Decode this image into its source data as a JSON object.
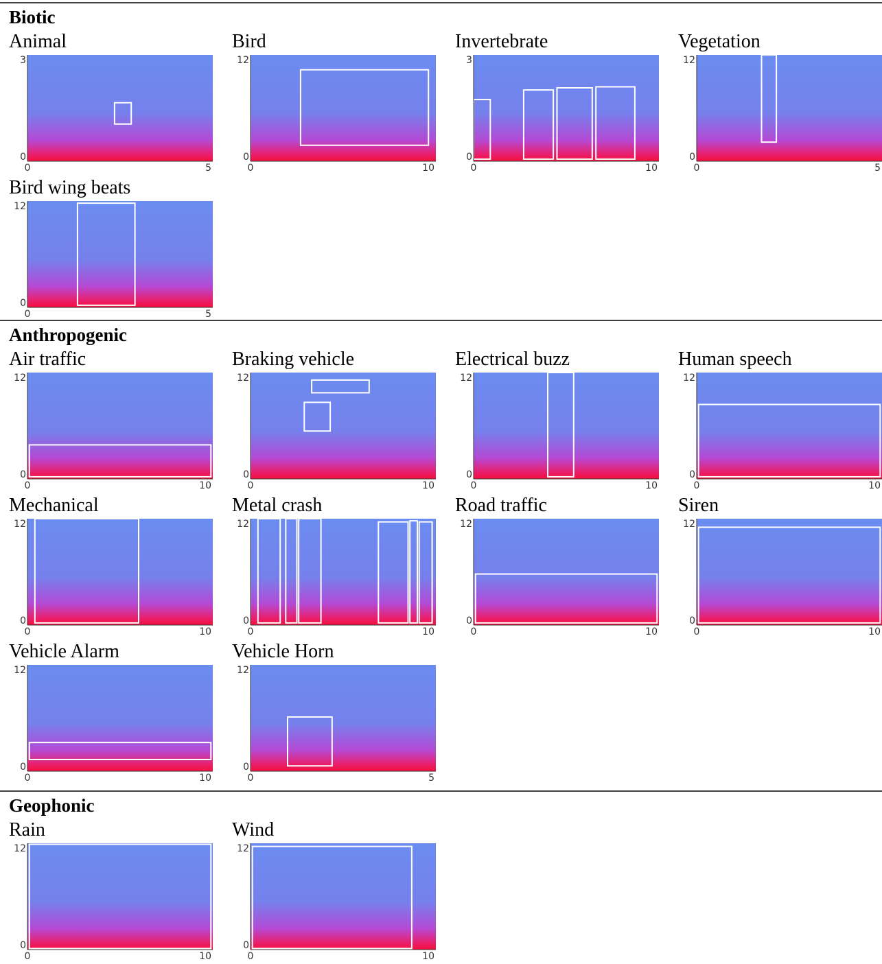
{
  "sections": [
    {
      "title": "Biotic",
      "panels": [
        {
          "label": "Animal",
          "y_max": 3,
          "y_min": 0,
          "x_min": 0,
          "x_max": 5
        },
        {
          "label": "Bird",
          "y_max": 12,
          "y_min": 0,
          "x_min": 0,
          "x_max": 10
        },
        {
          "label": "Invertebrate",
          "y_max": 3,
          "y_min": 0,
          "x_min": 0,
          "x_max": 10
        },
        {
          "label": "Vegetation",
          "y_max": 12,
          "y_min": 0,
          "x_min": 0,
          "x_max": 5
        },
        {
          "label": "Bird wing beats",
          "y_max": 12,
          "y_min": 0,
          "x_min": 0,
          "x_max": 5
        }
      ]
    },
    {
      "title": "Anthropogenic",
      "panels": [
        {
          "label": "Air traffic",
          "y_max": 12,
          "y_min": 0,
          "x_min": 0,
          "x_max": 10
        },
        {
          "label": "Braking vehicle",
          "y_max": 12,
          "y_min": 0,
          "x_min": 0,
          "x_max": 10
        },
        {
          "label": "Electrical buzz",
          "y_max": 12,
          "y_min": 0,
          "x_min": 0,
          "x_max": 10
        },
        {
          "label": "Human speech",
          "y_max": 12,
          "y_min": 0,
          "x_min": 0,
          "x_max": 10
        },
        {
          "label": "Mechanical",
          "y_max": 12,
          "y_min": 0,
          "x_min": 0,
          "x_max": 10
        },
        {
          "label": "Metal crash",
          "y_max": 12,
          "y_min": 0,
          "x_min": 0,
          "x_max": 10
        },
        {
          "label": "Road traffic",
          "y_max": 12,
          "y_min": 0,
          "x_min": 0,
          "x_max": 10
        },
        {
          "label": "Siren",
          "y_max": 12,
          "y_min": 0,
          "x_min": 0,
          "x_max": 10
        },
        {
          "label": "Vehicle Alarm",
          "y_max": 12,
          "y_min": 0,
          "x_min": 0,
          "x_max": 10
        },
        {
          "label": "Vehicle Horn",
          "y_max": 12,
          "y_min": 0,
          "x_min": 0,
          "x_max": 5
        }
      ]
    },
    {
      "title": "Geophonic",
      "panels": [
        {
          "label": "Rain",
          "y_max": 12,
          "y_min": 0,
          "x_min": 0,
          "x_max": 10
        },
        {
          "label": "Wind",
          "y_max": 12,
          "y_min": 0,
          "x_min": 0,
          "x_max": 10
        }
      ]
    }
  ]
}
